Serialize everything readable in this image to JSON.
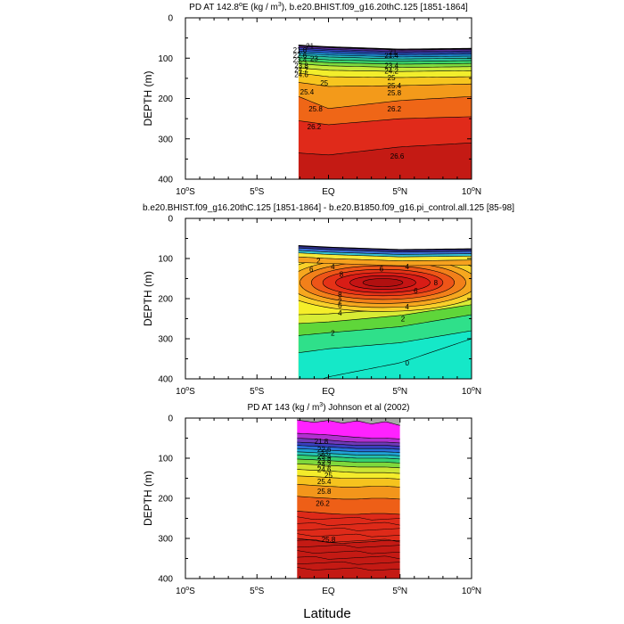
{
  "figure": {
    "xlabel": "Latitude"
  },
  "chart_data": [
    {
      "type": "heatmap",
      "id": "model",
      "title": "PD AT 142.8",
      "title_deg": "o",
      "title_post": "E (kg / m",
      "title_exp": "3",
      "title_tail": "), b.e20.BHIST.f09_g16.20thC.125 [1851-1864]",
      "ylabel": "DEPTH (m)",
      "xlim": [
        -10,
        10
      ],
      "ylim": [
        400,
        0
      ],
      "x_ticks": [
        {
          "label": "10",
          "hemi": "S",
          "v": -10
        },
        {
          "label": "5",
          "hemi": "S",
          "v": -5
        },
        {
          "label": "EQ",
          "hemi": "",
          "v": 0
        },
        {
          "label": "5",
          "hemi": "N",
          "v": 5
        },
        {
          "label": "10",
          "hemi": "N",
          "v": 10
        }
      ],
      "y_ticks": [
        "0",
        "100",
        "200",
        "300",
        "400"
      ],
      "lat_range": [
        -2.1,
        10
      ],
      "surface_depth": {
        "x": [
          -2.1,
          0,
          5,
          10
        ],
        "y": [
          68,
          72,
          78,
          76
        ]
      },
      "levels": [
        {
          "v": 21.0,
          "color": "#7a2f86",
          "d": [
            70,
            74,
            80,
            78
          ]
        },
        {
          "v": 21.4,
          "color": "#5a2f9e",
          "d": [
            74,
            78,
            84,
            82
          ]
        },
        {
          "v": 21.8,
          "color": "#3a3fbf",
          "d": [
            78,
            82,
            88,
            86
          ]
        },
        {
          "v": 22.2,
          "color": "#2a5fd6",
          "d": [
            83,
            87,
            92,
            90
          ]
        },
        {
          "v": 22.6,
          "color": "#1f8ed8",
          "d": [
            88,
            92,
            97,
            95
          ]
        },
        {
          "v": 23.0,
          "color": "#22b6c6",
          "d": [
            93,
            97,
            102,
            100
          ]
        },
        {
          "v": 23.4,
          "color": "#2bc79a",
          "d": [
            99,
            104,
            108,
            106
          ]
        },
        {
          "v": 23.8,
          "color": "#3ad36a",
          "d": [
            106,
            111,
            115,
            113
          ]
        },
        {
          "v": 24.2,
          "color": "#7edb3e",
          "d": [
            114,
            119,
            123,
            121
          ]
        },
        {
          "v": 24.6,
          "color": "#c6e83a",
          "d": [
            124,
            130,
            133,
            131
          ]
        },
        {
          "v": 25.0,
          "color": "#f2ee2c",
          "d": [
            137,
            146,
            148,
            146
          ]
        },
        {
          "v": 25.4,
          "color": "#f7c61f",
          "d": [
            160,
            170,
            168,
            164
          ]
        },
        {
          "v": 25.8,
          "color": "#f39a1a",
          "d": [
            195,
            225,
            205,
            195
          ]
        },
        {
          "v": 26.2,
          "color": "#ef6617",
          "d": [
            255,
            265,
            250,
            245
          ]
        },
        {
          "v": 26.6,
          "color": "#e02a1a",
          "d": [
            335,
            340,
            320,
            310
          ]
        }
      ],
      "deep_color": "#c41a14",
      "labels": [
        {
          "text": "21",
          "x": -1.3,
          "y": 70
        },
        {
          "text": "21.8",
          "x": -2.0,
          "y": 80
        },
        {
          "text": "22.6",
          "x": -2.0,
          "y": 93
        },
        {
          "text": "23",
          "x": -1.0,
          "y": 100
        },
        {
          "text": "23.4",
          "x": -2.0,
          "y": 104
        },
        {
          "text": "23.8",
          "x": -1.9,
          "y": 118
        },
        {
          "text": "24.2",
          "x": -1.9,
          "y": 128
        },
        {
          "text": "24.6",
          "x": -1.9,
          "y": 140
        },
        {
          "text": "25",
          "x": -0.3,
          "y": 161
        },
        {
          "text": "25.4",
          "x": -1.5,
          "y": 183
        },
        {
          "text": "25.8",
          "x": -0.9,
          "y": 225
        },
        {
          "text": "26.2",
          "x": -1.0,
          "y": 270
        },
        {
          "text": "21",
          "x": 4.5,
          "y": 84
        },
        {
          "text": "21.4",
          "x": 4.4,
          "y": 93
        },
        {
          "text": "23.4",
          "x": 4.4,
          "y": 118
        },
        {
          "text": "24.2",
          "x": 4.4,
          "y": 132
        },
        {
          "text": "25",
          "x": 4.4,
          "y": 148
        },
        {
          "text": "25.4",
          "x": 4.6,
          "y": 168
        },
        {
          "text": "25.8",
          "x": 4.6,
          "y": 186
        },
        {
          "text": "26.2",
          "x": 4.6,
          "y": 225
        },
        {
          "text": "26.6",
          "x": 4.8,
          "y": 343
        }
      ]
    },
    {
      "type": "heatmap",
      "id": "difference",
      "title": "b.e20.BHIST.f09_g16.20thC.125 [1851-1864] - b.e20.B1850.f09_g16.pi_control.all.125 [85-98]",
      "title_deg": "",
      "title_post": "",
      "title_exp": "",
      "title_tail": "",
      "ylabel": "DEPTH (m)",
      "xlim": [
        -10,
        10
      ],
      "ylim": [
        400,
        0
      ],
      "x_ticks": [
        {
          "label": "10",
          "hemi": "S",
          "v": -10
        },
        {
          "label": "5",
          "hemi": "S",
          "v": -5
        },
        {
          "label": "EQ",
          "hemi": "",
          "v": 0
        },
        {
          "label": "5",
          "hemi": "N",
          "v": 5
        },
        {
          "label": "10",
          "hemi": "N",
          "v": 10
        }
      ],
      "y_ticks": [
        "0",
        "100",
        "200",
        "300",
        "400"
      ],
      "lat_range": [
        -2.1,
        10
      ],
      "surface_depth": {
        "x": [
          -2.1,
          0,
          5,
          10
        ],
        "y": [
          68,
          72,
          78,
          76
        ]
      },
      "bands": [
        {
          "color": "#2f2f8f",
          "top": [
            68,
            72,
            78,
            76
          ],
          "bot": [
            74,
            78,
            84,
            82
          ]
        },
        {
          "color": "#3c6fd8",
          "top": [
            74,
            78,
            84,
            82
          ],
          "bot": [
            80,
            84,
            90,
            88
          ]
        },
        {
          "color": "#35c0d0",
          "top": [
            80,
            84,
            90,
            88
          ],
          "bot": [
            86,
            90,
            96,
            94
          ]
        },
        {
          "color": "#f6e83a",
          "top": [
            86,
            90,
            96,
            94
          ],
          "bot": [
            96,
            100,
            106,
            104
          ]
        },
        {
          "color": "#f6a21f",
          "top": [
            96,
            100,
            106,
            104
          ],
          "bot": [
            110,
            112,
            118,
            116
          ]
        }
      ],
      "layers": [
        {
          "v": 0,
          "color": "#15e8c8",
          "d": [
            420,
            395,
            360,
            300
          ]
        },
        {
          "v": 1,
          "color": "#2fe08a",
          "d": [
            335,
            325,
            310,
            280
          ]
        },
        {
          "v": 2,
          "color": "#5fd63a",
          "d": [
            292,
            285,
            270,
            240
          ]
        },
        {
          "v": 3,
          "color": "#d8ec35",
          "d": [
            262,
            258,
            242,
            215
          ]
        },
        {
          "v": 4,
          "color": "#f5ee2a",
          "d": [
            240,
            238,
            225,
            196
          ]
        }
      ],
      "core": {
        "cx": 3.8,
        "cy": 160,
        "rings": [
          {
            "v": 4.5,
            "color": "#f8d02a",
            "rx": 7.5,
            "ry": 72
          },
          {
            "v": 5,
            "color": "#f6a71f",
            "rx": 6.6,
            "ry": 62
          },
          {
            "v": 5.5,
            "color": "#f2801a",
            "rx": 5.8,
            "ry": 52
          },
          {
            "v": 6,
            "color": "#ee5518",
            "rx": 5.0,
            "ry": 42
          },
          {
            "v": 6.5,
            "color": "#e53217",
            "rx": 4.2,
            "ry": 33
          },
          {
            "v": 7,
            "color": "#d81c16",
            "rx": 3.3,
            "ry": 25
          },
          {
            "v": 7.5,
            "color": "#c41414",
            "rx": 2.3,
            "ry": 17
          },
          {
            "v": 8,
            "color": "#b01010",
            "rx": 1.4,
            "ry": 10
          }
        ]
      },
      "labels": [
        {
          "text": "6",
          "x": -1.2,
          "y": 127
        },
        {
          "text": "4",
          "x": 0.3,
          "y": 120
        },
        {
          "text": "8",
          "x": 0.9,
          "y": 139
        },
        {
          "text": "6",
          "x": 3.7,
          "y": 126
        },
        {
          "text": "4",
          "x": 5.5,
          "y": 120
        },
        {
          "text": "2",
          "x": -0.7,
          "y": 105
        },
        {
          "text": "2",
          "x": 0.8,
          "y": 205
        },
        {
          "text": "8",
          "x": 7.5,
          "y": 160
        },
        {
          "text": "6",
          "x": 6.1,
          "y": 180
        },
        {
          "text": "4",
          "x": 5.5,
          "y": 220
        },
        {
          "text": "2",
          "x": 5.2,
          "y": 250
        },
        {
          "text": "8",
          "x": 0.8,
          "y": 190
        },
        {
          "text": "6",
          "x": 0.8,
          "y": 217
        },
        {
          "text": "4",
          "x": 0.8,
          "y": 235
        },
        {
          "text": "2",
          "x": 0.3,
          "y": 285
        },
        {
          "text": "0",
          "x": 5.5,
          "y": 360
        }
      ]
    },
    {
      "type": "heatmap",
      "id": "observations",
      "title": "PD AT 143 (kg / m",
      "title_deg": "",
      "title_post": "",
      "title_exp": "3",
      "title_tail": ") Johnson et al (2002)",
      "ylabel": "DEPTH (m)",
      "xlim": [
        -10,
        10
      ],
      "ylim": [
        400,
        0
      ],
      "x_ticks": [
        {
          "label": "10",
          "hemi": "S",
          "v": -10
        },
        {
          "label": "5",
          "hemi": "S",
          "v": -5
        },
        {
          "label": "EQ",
          "hemi": "",
          "v": 0
        },
        {
          "label": "5",
          "hemi": "N",
          "v": 5
        },
        {
          "label": "10",
          "hemi": "N",
          "v": 10
        }
      ],
      "y_ticks": [
        "0",
        "100",
        "200",
        "300",
        "400"
      ],
      "lat_range": [
        -2.2,
        5.0
      ],
      "surface_depth": {
        "x": [
          -2.2,
          -1,
          0,
          1,
          2,
          3,
          4,
          5.0
        ],
        "y": [
          4,
          10,
          5,
          12,
          6,
          14,
          8,
          18
        ]
      },
      "levels": [
        {
          "v": 21.4,
          "color": "#ea21ea",
          "d": [
            38,
            40,
            42,
            45,
            48,
            50,
            50,
            52
          ]
        },
        {
          "v": 21.8,
          "color": "#b12fd0",
          "d": [
            50,
            52,
            55,
            58,
            60,
            60,
            60,
            62
          ]
        },
        {
          "v": 22.2,
          "color": "#6f3ab8",
          "d": [
            60,
            62,
            64,
            66,
            68,
            68,
            68,
            70
          ]
        },
        {
          "v": 22.6,
          "color": "#3a3fbf",
          "d": [
            68,
            70,
            72,
            74,
            76,
            76,
            76,
            78
          ]
        },
        {
          "v": 23.0,
          "color": "#2a6fd8",
          "d": [
            76,
            78,
            80,
            82,
            84,
            84,
            84,
            86
          ]
        },
        {
          "v": 23.4,
          "color": "#1fa2d4",
          "d": [
            84,
            86,
            88,
            90,
            92,
            92,
            92,
            94
          ]
        },
        {
          "v": 23.8,
          "color": "#24c2b0",
          "d": [
            92,
            94,
            96,
            98,
            100,
            100,
            100,
            102
          ]
        },
        {
          "v": 24.2,
          "color": "#35d072",
          "d": [
            102,
            104,
            106,
            108,
            110,
            110,
            110,
            112
          ]
        },
        {
          "v": 24.6,
          "color": "#7fd83c",
          "d": [
            114,
            116,
            118,
            120,
            122,
            122,
            122,
            124
          ]
        },
        {
          "v": 25.0,
          "color": "#cde534",
          "d": [
            128,
            130,
            132,
            134,
            136,
            136,
            136,
            138
          ]
        },
        {
          "v": 25.4,
          "color": "#f4ec2b",
          "d": [
            144,
            146,
            148,
            150,
            150,
            150,
            150,
            152
          ]
        },
        {
          "v": 25.8,
          "color": "#f6c31e",
          "d": [
            165,
            168,
            170,
            172,
            172,
            170,
            170,
            172
          ]
        },
        {
          "v": 26.2,
          "color": "#f3961b",
          "d": [
            195,
            198,
            200,
            202,
            202,
            200,
            200,
            202
          ]
        },
        {
          "v": 26.6,
          "color": "#ee5f17",
          "d": [
            232,
            235,
            238,
            240,
            240,
            238,
            238,
            240
          ]
        },
        {
          "v": 27.0,
          "color": "#de2a19",
          "d": [
            300,
            305,
            310,
            312,
            310,
            308,
            305,
            305
          ]
        }
      ],
      "deep_color": "#c41a14",
      "top_color": "#ff22ff",
      "labels": [
        {
          "text": "21.8",
          "x": -0.5,
          "y": 58
        },
        {
          "text": "22.6",
          "x": -0.3,
          "y": 78
        },
        {
          "text": "23",
          "x": -0.3,
          "y": 88
        },
        {
          "text": "23.4",
          "x": -0.3,
          "y": 96
        },
        {
          "text": "23.8",
          "x": -0.3,
          "y": 106
        },
        {
          "text": "24.2",
          "x": -0.3,
          "y": 116
        },
        {
          "text": "24.6",
          "x": -0.3,
          "y": 128
        },
        {
          "text": "25",
          "x": 0.0,
          "y": 142
        },
        {
          "text": "25.4",
          "x": -0.3,
          "y": 158
        },
        {
          "text": "25.8",
          "x": -0.3,
          "y": 182
        },
        {
          "text": "26.2",
          "x": -0.4,
          "y": 212
        },
        {
          "text": "25.8",
          "x": 0.0,
          "y": 302
        }
      ]
    }
  ]
}
